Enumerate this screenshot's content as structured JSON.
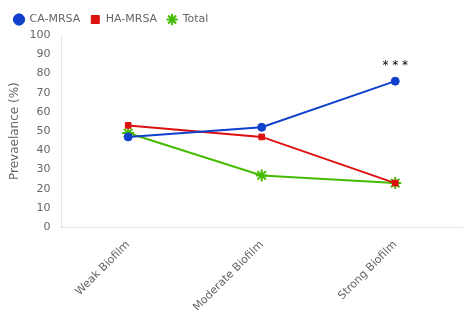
{
  "chart_data": {
    "type": "line",
    "categories": [
      "Weak Biofilm",
      "Moderate Biofilm",
      "Strong Biofilm"
    ],
    "series": [
      {
        "name": "CA-MRSA",
        "color": "#1040CC",
        "marker": "circle",
        "values": [
          47,
          52,
          76
        ]
      },
      {
        "name": "HA-MRSA",
        "color": "#DD1010",
        "marker": "square",
        "values": [
          53,
          47,
          23
        ]
      },
      {
        "name": "Total",
        "color": "#44BB00",
        "marker": "star",
        "values": [
          49,
          27,
          23
        ]
      }
    ],
    "ylabel": "Prevaelance (%)",
    "ylim": [
      0,
      100
    ],
    "yticks": [
      0,
      10,
      20,
      30,
      40,
      50,
      60,
      70,
      80,
      90,
      100
    ],
    "annotations": [
      {
        "text": "* * *",
        "x": 2,
        "y": 80
      }
    ],
    "legend": "upper left",
    "grid": false
  }
}
